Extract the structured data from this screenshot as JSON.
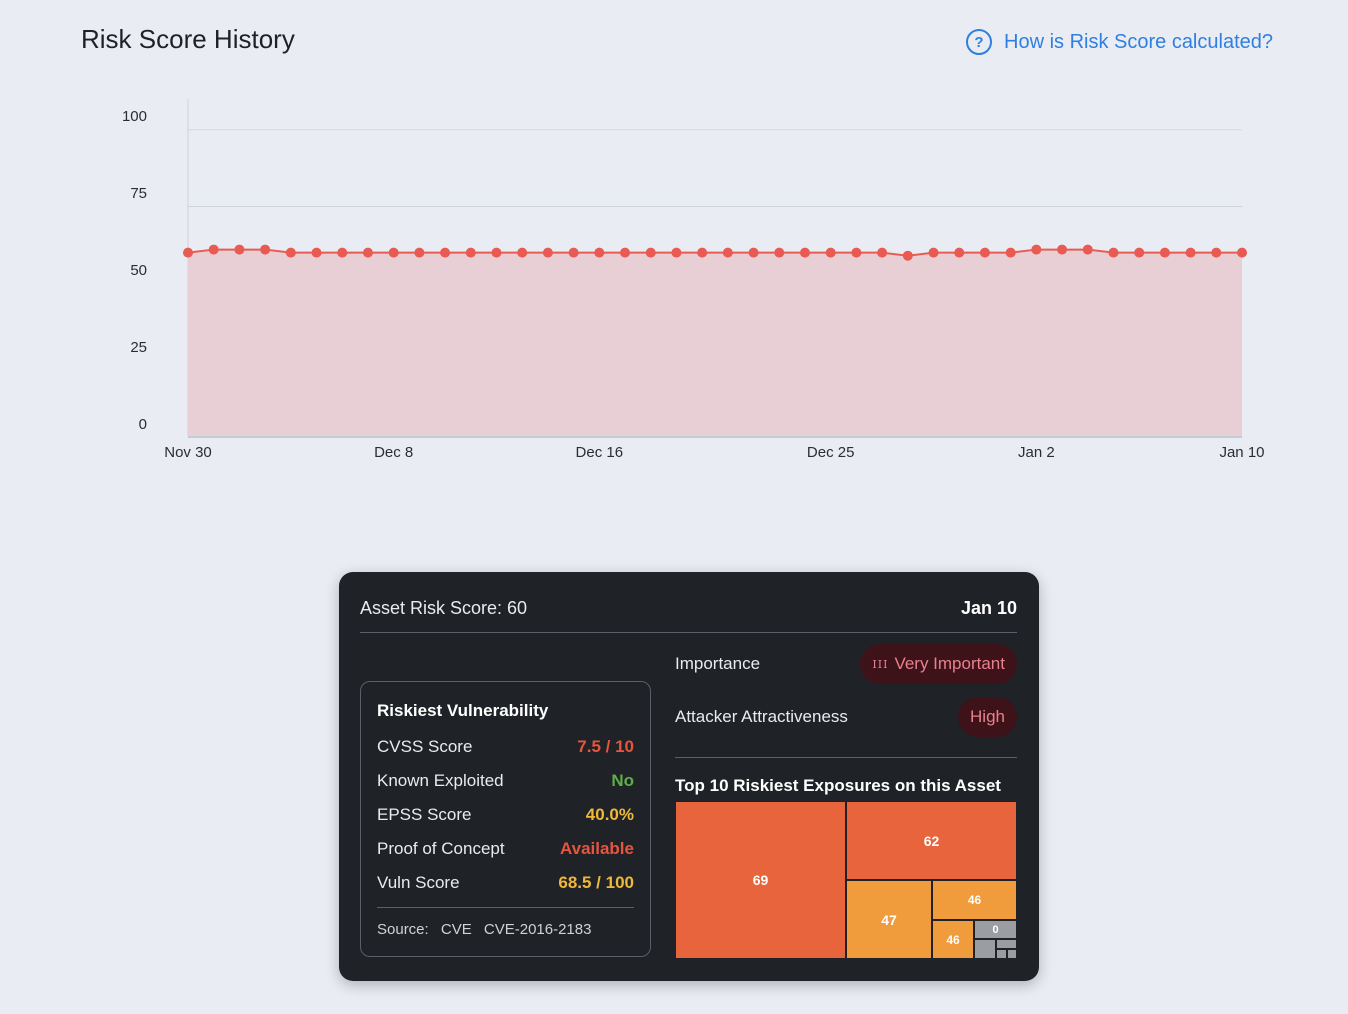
{
  "header": {
    "title": "Risk Score History",
    "help_link": "How is Risk Score calculated?",
    "help_icon": "question-circle-icon"
  },
  "chart_data": {
    "type": "area",
    "title": "Risk Score History",
    "ylim": [
      0,
      110
    ],
    "y_ticks": [
      "0",
      "25",
      "50",
      "75",
      "100"
    ],
    "x_tick_labels": [
      "Nov 30",
      "Dec 8",
      "Dec 16",
      "Dec 25",
      "Jan 2",
      "Jan 10"
    ],
    "x_tick_dates": [
      "2023-11-30",
      "2023-12-08",
      "2023-12-16",
      "2023-12-25",
      "2024-01-02",
      "2024-01-10"
    ],
    "start_date": "2023-11-30",
    "series": [
      {
        "name": "Asset Risk Score",
        "color": "#e85a52",
        "fill": "#e8cfd5",
        "values": [
          60,
          61,
          61,
          61,
          60,
          60,
          60,
          60,
          60,
          60,
          60,
          60,
          60,
          60,
          60,
          60,
          60,
          60,
          60,
          60,
          60,
          60,
          60,
          60,
          60,
          60,
          60,
          60,
          59,
          60,
          60,
          60,
          60,
          61,
          61,
          61,
          60,
          60,
          60,
          60,
          60,
          60
        ]
      }
    ]
  },
  "tooltip": {
    "asset_risk_label": "Asset Risk Score: 60",
    "date": "Jan 10",
    "importance_label": "Importance",
    "importance_value": "Very Important",
    "importance_icon": "III",
    "attractiveness_label": "Attacker Attractiveness",
    "attractiveness_value": "High",
    "top10_title": "Top 10 Riskiest Exposures on this Asset",
    "treemap": {
      "cells": [
        "69",
        "62",
        "47",
        "46",
        "46",
        "0"
      ]
    }
  },
  "vulnerability": {
    "title": "Riskiest Vulnerability",
    "rows": [
      {
        "label": "CVSS Score",
        "value": "7.5 / 10",
        "color": "#e8543e"
      },
      {
        "label": "Known Exploited",
        "value": "No",
        "color": "#5fae4a"
      },
      {
        "label": "EPSS Score",
        "value": "40.0%",
        "color": "#efb83a"
      },
      {
        "label": "Proof of Concept",
        "value": "Available",
        "color": "#e8543e"
      },
      {
        "label": "Vuln Score",
        "value": "68.5 / 100",
        "color": "#efb83a"
      }
    ],
    "source_label": "Source:",
    "source_type": "CVE",
    "source_id": "CVE-2016-2183"
  }
}
